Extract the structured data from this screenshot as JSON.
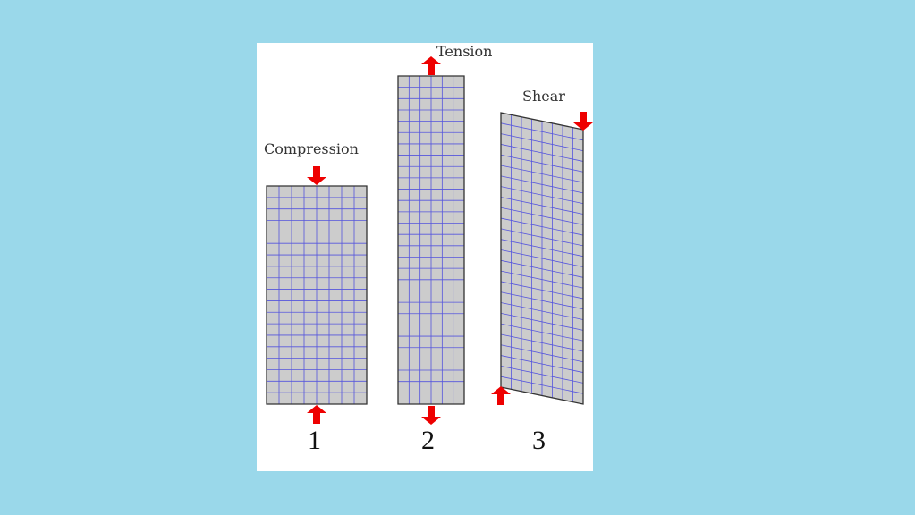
{
  "labels": {
    "compression": "Compression",
    "tension": "Tension",
    "shear": "Shear"
  },
  "numbers": {
    "one": "1",
    "two": "2",
    "three": "3"
  },
  "colors": {
    "background": "#9ad8ea",
    "panel": "#ffffff",
    "specimen_fill": "#cccccc",
    "grid_line": "#5555dd",
    "outline": "#333333",
    "arrow": "#ee0000"
  },
  "icons": {
    "arrow_down": "arrow-down-icon",
    "arrow_up": "arrow-up-icon"
  }
}
